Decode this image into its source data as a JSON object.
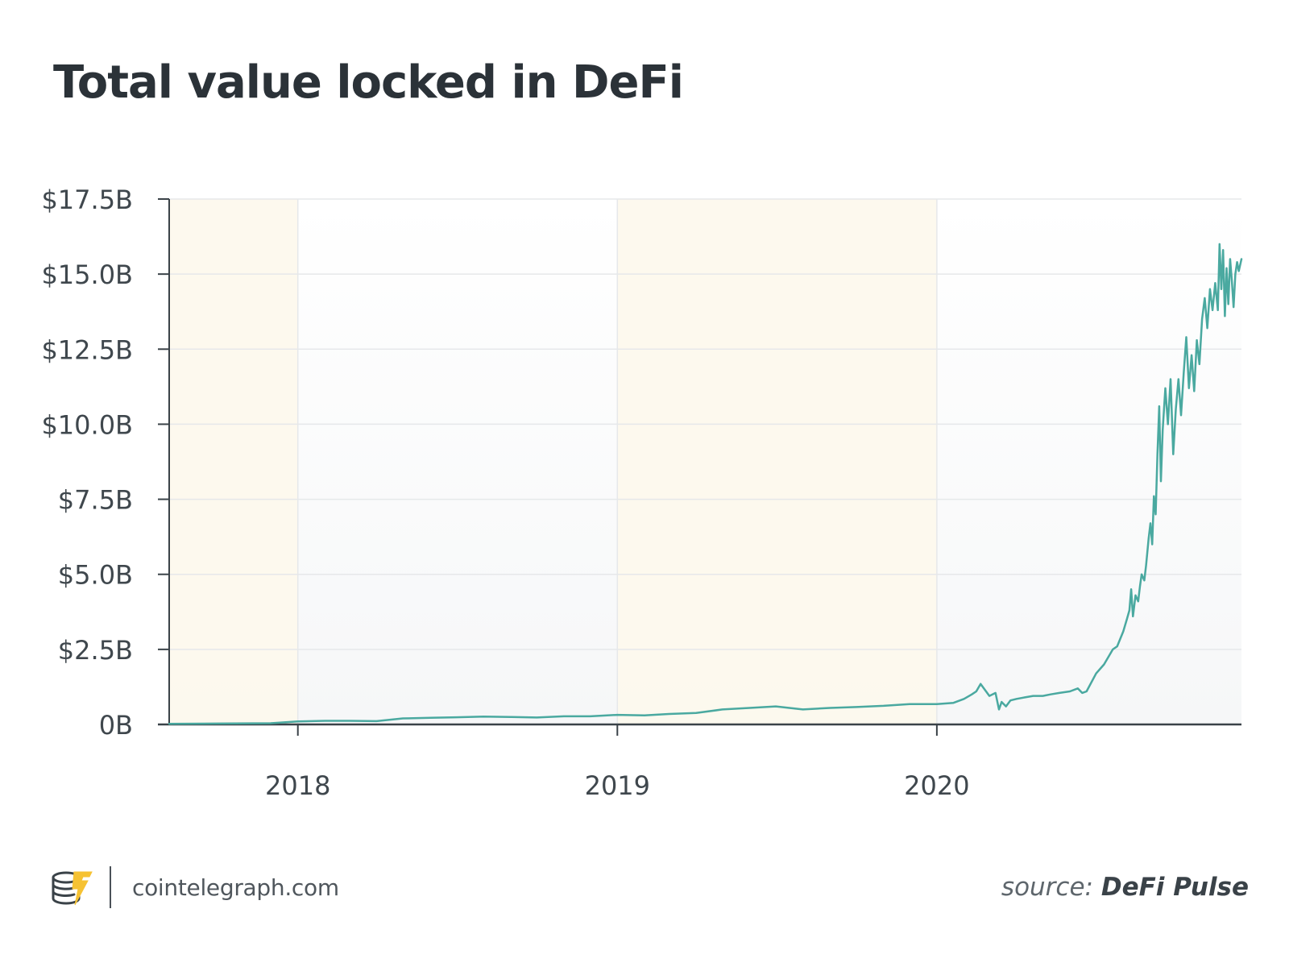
{
  "chart_data": {
    "type": "line",
    "title": "Total value locked in DeFi",
    "xlabel": "",
    "ylabel": "",
    "ylim": [
      0,
      17.5
    ],
    "xlim": [
      "2017-08-07",
      "2020-12-14"
    ],
    "y_ticks": [
      {
        "value": 0,
        "label": "0B"
      },
      {
        "value": 2.5,
        "label": "$2.5B"
      },
      {
        "value": 5,
        "label": "$5.0B"
      },
      {
        "value": 7.5,
        "label": "$7.5B"
      },
      {
        "value": 10,
        "label": "$10.0B"
      },
      {
        "value": 12.5,
        "label": "$12.5B"
      },
      {
        "value": 15,
        "label": "$15.0B"
      },
      {
        "value": 17.5,
        "label": "$17.5B"
      }
    ],
    "x_ticks": [
      {
        "value": "2018-01-01",
        "label": "2018"
      },
      {
        "value": "2019-01-01",
        "label": "2019"
      },
      {
        "value": "2020-01-01",
        "label": "2020"
      }
    ],
    "grid": true,
    "shaded_periods": [
      {
        "start": "2017-08-07",
        "end": "2018-01-01",
        "color": "#fdf8ec"
      },
      {
        "start": "2019-01-01",
        "end": "2020-01-01",
        "color": "#fdf8ec"
      }
    ],
    "series": [
      {
        "color": "#4aa9a0",
        "x": [
          "2017-08-07",
          "2017-10-01",
          "2017-12-01",
          "2018-01-01",
          "2018-02-01",
          "2018-03-01",
          "2018-04-01",
          "2018-05-01",
          "2018-06-01",
          "2018-07-01",
          "2018-08-01",
          "2018-09-01",
          "2018-10-01",
          "2018-11-01",
          "2018-12-01",
          "2019-01-01",
          "2019-02-01",
          "2019-03-01",
          "2019-04-01",
          "2019-05-01",
          "2019-06-01",
          "2019-07-01",
          "2019-08-01",
          "2019-09-01",
          "2019-10-01",
          "2019-11-01",
          "2019-12-01",
          "2020-01-01",
          "2020-01-20",
          "2020-02-01",
          "2020-02-10",
          "2020-02-15",
          "2020-02-20",
          "2020-03-01",
          "2020-03-08",
          "2020-03-12",
          "2020-03-15",
          "2020-03-20",
          "2020-03-25",
          "2020-04-01",
          "2020-04-10",
          "2020-04-20",
          "2020-05-01",
          "2020-05-10",
          "2020-05-20",
          "2020-06-01",
          "2020-06-10",
          "2020-06-15",
          "2020-06-20",
          "2020-07-01",
          "2020-07-10",
          "2020-07-20",
          "2020-07-25",
          "2020-08-01",
          "2020-08-05",
          "2020-08-08",
          "2020-08-10",
          "2020-08-12",
          "2020-08-15",
          "2020-08-18",
          "2020-08-20",
          "2020-08-22",
          "2020-08-25",
          "2020-08-27",
          "2020-08-30",
          "2020-09-01",
          "2020-09-03",
          "2020-09-05",
          "2020-09-07",
          "2020-09-09",
          "2020-09-11",
          "2020-09-13",
          "2020-09-15",
          "2020-09-18",
          "2020-09-21",
          "2020-09-24",
          "2020-09-27",
          "2020-09-30",
          "2020-10-03",
          "2020-10-06",
          "2020-10-09",
          "2020-10-12",
          "2020-10-15",
          "2020-10-18",
          "2020-10-21",
          "2020-10-24",
          "2020-10-27",
          "2020-10-30",
          "2020-11-02",
          "2020-11-05",
          "2020-11-08",
          "2020-11-11",
          "2020-11-14",
          "2020-11-17",
          "2020-11-19",
          "2020-11-21",
          "2020-11-23",
          "2020-11-25",
          "2020-11-27",
          "2020-11-29",
          "2020-12-01",
          "2020-12-03",
          "2020-12-05",
          "2020-12-07",
          "2020-12-09",
          "2020-12-11",
          "2020-12-14"
        ],
        "values": [
          0.02,
          0.03,
          0.04,
          0.1,
          0.12,
          0.12,
          0.11,
          0.2,
          0.22,
          0.24,
          0.26,
          0.25,
          0.23,
          0.27,
          0.27,
          0.32,
          0.3,
          0.35,
          0.38,
          0.5,
          0.55,
          0.6,
          0.5,
          0.55,
          0.58,
          0.62,
          0.68,
          0.68,
          0.72,
          0.85,
          1.0,
          1.1,
          1.35,
          0.95,
          1.05,
          0.5,
          0.75,
          0.6,
          0.8,
          0.85,
          0.9,
          0.95,
          0.95,
          1.0,
          1.05,
          1.1,
          1.2,
          1.05,
          1.1,
          1.7,
          2.0,
          2.5,
          2.6,
          3.1,
          3.5,
          3.8,
          4.5,
          3.6,
          4.3,
          4.1,
          4.6,
          5.0,
          4.8,
          5.3,
          6.2,
          6.7,
          6.0,
          7.6,
          7.0,
          9.0,
          10.6,
          8.1,
          9.8,
          11.2,
          10.0,
          11.5,
          9.0,
          10.5,
          11.5,
          10.3,
          11.7,
          12.9,
          11.2,
          12.3,
          11.1,
          12.8,
          12.0,
          13.5,
          14.2,
          13.2,
          14.5,
          13.8,
          14.7,
          13.8,
          16.0,
          14.5,
          15.8,
          13.6,
          15.2,
          14.0,
          15.5,
          14.8,
          13.9,
          15.0,
          15.4,
          15.1,
          15.5
        ]
      }
    ]
  },
  "footer": {
    "brand_text": "cointelegraph.com",
    "logo_icon": "cointelegraph-coin-lightning-icon",
    "source_prefix": "source:",
    "source_name": "DeFi Pulse"
  }
}
